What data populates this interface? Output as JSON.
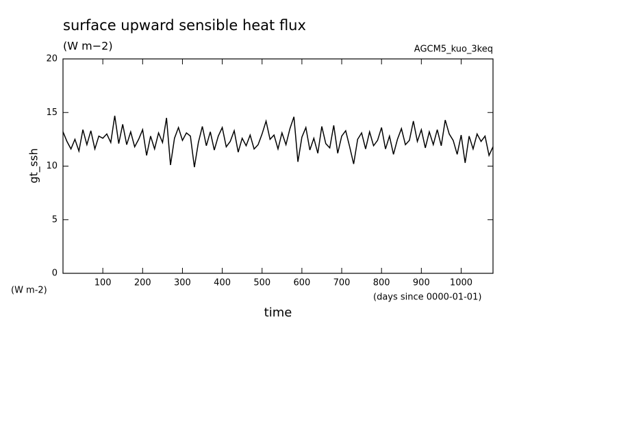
{
  "chart_data": {
    "type": "line",
    "title": "surface upward sensible heat flux",
    "subtitle": "(W m−2)",
    "annotation": "AGCM5_kuo_3keq",
    "ylabel": "gt_ssh",
    "yunits": "(W m-2)",
    "xlabel": "time",
    "xunits": "(days since 0000-01-01)",
    "color": "#000000",
    "x": [
      0,
      10,
      20,
      30,
      40,
      50,
      60,
      70,
      80,
      90,
      100,
      110,
      120,
      130,
      140,
      150,
      160,
      170,
      180,
      190,
      200,
      210,
      220,
      230,
      240,
      250,
      260,
      270,
      280,
      290,
      300,
      310,
      320,
      330,
      340,
      350,
      360,
      370,
      380,
      390,
      400,
      410,
      420,
      430,
      440,
      450,
      460,
      470,
      480,
      490,
      500,
      510,
      520,
      530,
      540,
      550,
      560,
      570,
      580,
      590,
      600,
      610,
      620,
      630,
      640,
      650,
      660,
      670,
      680,
      690,
      700,
      710,
      720,
      730,
      740,
      750,
      760,
      770,
      780,
      790,
      800,
      810,
      820,
      830,
      840,
      850,
      860,
      870,
      880,
      890,
      900,
      910,
      920,
      930,
      940,
      950,
      960,
      970,
      980,
      990,
      1000,
      1010,
      1020,
      1030,
      1040,
      1050,
      1060,
      1070,
      1080
    ],
    "values": [
      13.2,
      12.3,
      11.6,
      12.5,
      11.4,
      13.4,
      12.0,
      13.3,
      11.6,
      12.8,
      12.6,
      13.0,
      12.2,
      14.7,
      12.1,
      13.9,
      12.0,
      13.2,
      11.8,
      12.5,
      13.4,
      11.0,
      12.8,
      11.6,
      13.1,
      12.2,
      14.5,
      10.1,
      12.6,
      13.6,
      12.4,
      13.1,
      12.8,
      9.9,
      12.2,
      13.7,
      11.9,
      13.2,
      11.5,
      12.8,
      13.6,
      11.8,
      12.3,
      13.3,
      11.3,
      12.6,
      11.9,
      12.9,
      11.6,
      12.0,
      13.0,
      14.2,
      12.5,
      12.9,
      11.6,
      13.1,
      12.0,
      13.5,
      14.6,
      10.4,
      12.7,
      13.6,
      11.5,
      12.6,
      11.2,
      13.7,
      12.1,
      11.7,
      13.8,
      11.2,
      12.8,
      13.3,
      11.8,
      10.2,
      12.5,
      13.1,
      11.6,
      13.2,
      11.9,
      12.4,
      13.6,
      11.6,
      12.8,
      11.1,
      12.5,
      13.5,
      12.0,
      12.4,
      14.2,
      12.3,
      13.4,
      11.7,
      13.2,
      12.0,
      13.4,
      11.9,
      14.3,
      13.0,
      12.4,
      11.1,
      12.9,
      10.3,
      12.8,
      11.6,
      13.0,
      12.3,
      12.8,
      11.0,
      11.8
    ],
    "xlim": [
      0,
      1080
    ],
    "xticks": [
      100,
      200,
      300,
      400,
      500,
      600,
      700,
      800,
      900,
      1000
    ],
    "ylim": [
      0,
      20
    ],
    "yticks": [
      0,
      5,
      10,
      15,
      20
    ]
  }
}
